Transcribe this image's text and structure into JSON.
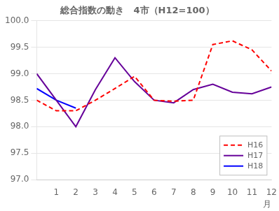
{
  "chart_data": {
    "type": "line",
    "title": "総合指数の動き　4市（H12=100）",
    "xlabel": "月",
    "xlim": [
      0.0,
      12.0
    ],
    "xticks": [
      1,
      2,
      3,
      4,
      5,
      6,
      7,
      8,
      9,
      10,
      11,
      12
    ],
    "ylim": [
      97.0,
      100.0
    ],
    "yticks": [
      {
        "value": 97.0,
        "label": "97.0"
      },
      97.5,
      {
        "value": 98.0,
        "label": "98.0"
      },
      98.5,
      {
        "value": 99.0,
        "label": "99.0"
      },
      99.5,
      {
        "value": 100.0,
        "label": "100.0"
      }
    ],
    "grid": "y",
    "legend": "lower right",
    "series": [
      {
        "name": "H16",
        "color": "#ff0000",
        "line_style": "dashed",
        "x": [
          0.0,
          1,
          2,
          3,
          4,
          5,
          6,
          7,
          8,
          9,
          10,
          11,
          12
        ],
        "values": [
          98.5,
          98.3,
          98.3,
          98.5,
          98.72,
          98.95,
          98.5,
          98.48,
          98.5,
          99.55,
          99.62,
          99.45,
          99.05
        ]
      },
      {
        "name": "H17",
        "color": "#660099",
        "line_style": "solid",
        "x": [
          0.0,
          1,
          2,
          3,
          4,
          5,
          6,
          7,
          8,
          9,
          10,
          11,
          12
        ],
        "values": [
          99.0,
          98.5,
          98.0,
          98.7,
          99.3,
          98.85,
          98.5,
          98.45,
          98.7,
          98.8,
          98.65,
          98.62,
          98.75
        ]
      },
      {
        "name": "H18",
        "color": "#0000ff",
        "line_style": "solid",
        "x": [
          0.0,
          1,
          2
        ],
        "values": [
          98.72,
          98.5,
          98.35
        ]
      }
    ]
  }
}
